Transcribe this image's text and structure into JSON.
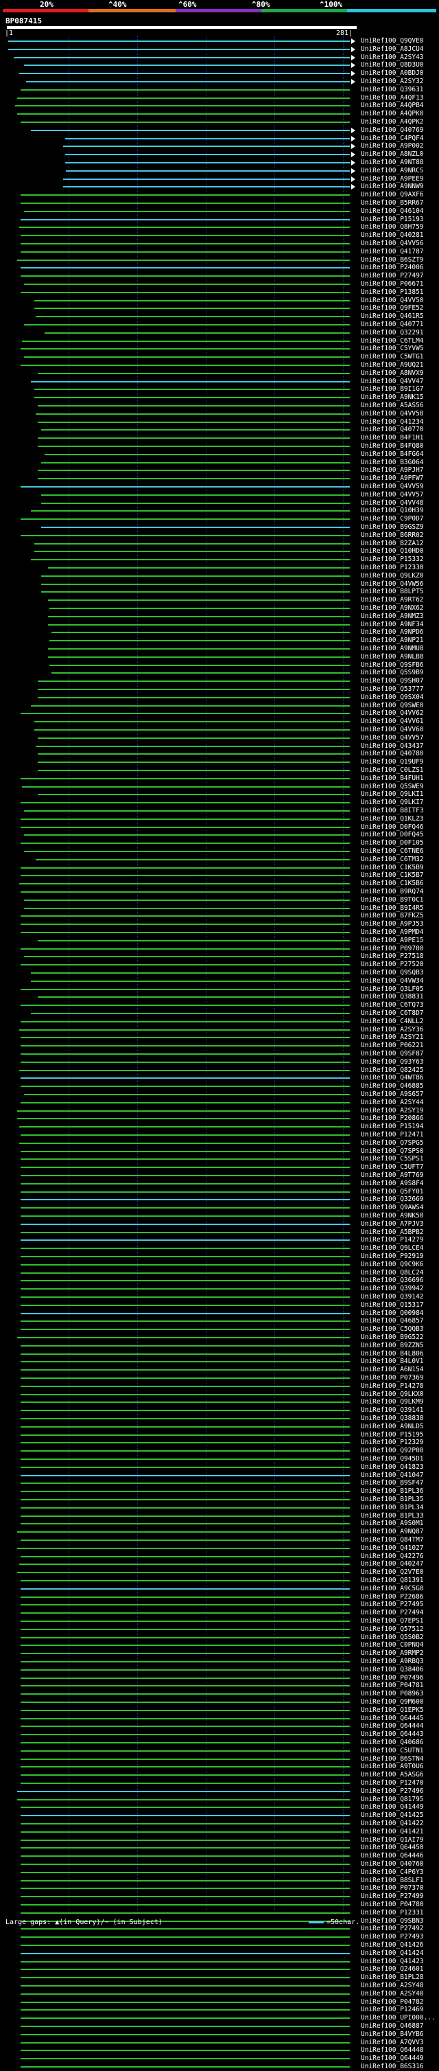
{
  "scale": {
    "labels": [
      "20%",
      "^40%",
      "^60%",
      "^80%",
      "^100%"
    ],
    "colors": [
      "#e01d1d",
      "#e06d1d",
      "#8a2fbf",
      "#1ea84a",
      "#29c3dc"
    ]
  },
  "query": {
    "title": "BP087415",
    "start_label": "|1",
    "end_label": "281|"
  },
  "colors": {
    "hit": "#2fbf2f",
    "hit_high": "#45c8e0",
    "gap": "#111"
  },
  "hits": [
    "UniRef100_Q9QVE0",
    "UniRef100_A8JCU4",
    "UniRef100_A2SY43",
    "UniRef100_Q8D3U0",
    "UniRef100_A0BDJ0",
    "UniRef100_A2SY32",
    "UniRef100_Q39631",
    "UniRef100_A4QF13",
    "UniRef100_A4QPB4",
    "UniRef100_A4QPK0",
    "UniRef100_A4QPK2",
    "UniRef100_Q40769",
    "UniRef100_C4PQF4",
    "UniRef100_A9P002",
    "UniRef100_A8NZL0",
    "UniRef100_A9NT88",
    "UniRef100_A9NRCS",
    "UniRef100_A9PEE9",
    "UniRef100_A9NNW9",
    "UniRef100_Q9AXF6",
    "UniRef100_B5RR67",
    "UniRef100_Q46104",
    "UniRef100_P15193",
    "UniRef100_Q8H759",
    "UniRef100_Q40281",
    "UniRef100_Q4VV56",
    "UniRef100_Q41787",
    "UniRef100_B6SZT9",
    "UniRef100_P24006",
    "UniRef100_P27497",
    "UniRef100_P06671",
    "UniRef100_P13851",
    "UniRef100_Q4VV50",
    "UniRef100_Q9FE52",
    "UniRef100_Q461R5",
    "UniRef100_Q40771",
    "UniRef100_Q32291",
    "UniRef100_C6TLM4",
    "UniRef100_C5YVW5",
    "UniRef100_C5WTG1",
    "UniRef100_A9UQ21",
    "UniRef100_A8NVX9",
    "UniRef100_Q4VV47",
    "UniRef100_B9I1G7",
    "UniRef100_A9NK15",
    "UniRef100_A5AS56",
    "UniRef100_Q4VV58",
    "UniRef100_Q41234",
    "UniRef100_Q40770",
    "UniRef100_B4F1H1",
    "UniRef100_B4FQ80",
    "UniRef100_B4FG64",
    "UniRef100_B3G064",
    "UniRef100_A9PJH7",
    "UniRef100_A9PFW7",
    "UniRef100_Q4VV59",
    "UniRef100_Q4VV57",
    "UniRef100_Q4VV48",
    "UniRef100_Q10H39",
    "UniRef100_C9P0D7",
    "UniRef100_B9GSZ9",
    "UniRef100_B6RR02",
    "UniRef100_B2ZA12",
    "UniRef100_Q10HD0",
    "UniRef100_P15332",
    "UniRef100_P12330",
    "UniRef100_Q9LKZ0",
    "UniRef100_Q4VW56",
    "UniRef100_B8LPT5",
    "UniRef100_A9RT62",
    "UniRef100_A9NX62",
    "UniRef100_A9NMZ3",
    "UniRef100_A9NF34",
    "UniRef100_A9NPD6",
    "UniRef100_A9NP21",
    "UniRef100_A9NMU8",
    "UniRef100_A9NLB8",
    "UniRef100_Q9SFB6",
    "UniRef100_Q5S9B9",
    "UniRef100_Q9SH07",
    "UniRef100_Q53777",
    "UniRef100_Q9SX04",
    "UniRef100_Q9SWE0",
    "UniRef100_Q4VV62",
    "UniRef100_Q4VV61",
    "UniRef100_Q4VV60",
    "UniRef100_Q4VV57",
    "UniRef100_Q43437",
    "UniRef100_Q40780",
    "UniRef100_Q19UF9",
    "UniRef100_C0LZS1",
    "UniRef100_B4FUH1",
    "UniRef100_Q5SWE9",
    "UniRef100_Q9LKI1",
    "UniRef100_Q9LKI7",
    "UniRef100_B8ITF3",
    "UniRef100_Q1KLZ3",
    "UniRef100_D0FQ46",
    "UniRef100_D0FQ45",
    "UniRef100_D0F105",
    "UniRef100_C6TNE6",
    "UniRef100_C6TM32",
    "UniRef100_C1K5B9",
    "UniRef100_C1K5B7",
    "UniRef100_C1K5B6",
    "UniRef100_B9RQ74",
    "UniRef100_B9T0C1",
    "UniRef100_B9I4R5",
    "UniRef100_B7FKZ5",
    "UniRef100_A9PJ53",
    "UniRef100_A9PMD4",
    "UniRef100_A9PE15",
    "UniRef100_P09700",
    "UniRef100_P27518",
    "UniRef100_P27520",
    "UniRef100_Q9SQB3",
    "UniRef100_Q4VW34",
    "UniRef100_Q3LF05",
    "UniRef100_Q38831",
    "UniRef100_C6TQ73",
    "UniRef100_C6T8D7",
    "UniRef100_C4NLL2",
    "UniRef100_A2SY36",
    "UniRef100_A2SY21",
    "UniRef100_P06221",
    "UniRef100_Q9SF87",
    "UniRef100_Q93Y63",
    "UniRef100_Q82425",
    "UniRef100_Q4WT86",
    "UniRef100_Q46885",
    "UniRef100_A9S657",
    "UniRef100_A2SY44",
    "UniRef100_A2SY19",
    "UniRef100_P20866",
    "UniRef100_P15194",
    "UniRef100_P12471",
    "UniRef100_Q7SPG5",
    "UniRef100_Q7SPS0",
    "UniRef100_C5SPS1",
    "UniRef100_C5UFT7",
    "UniRef100_A9T769",
    "UniRef100_A9S8F4",
    "UniRef100_Q5FY01",
    "UniRef100_Q32669",
    "UniRef100_Q9AWS4",
    "UniRef100_A9NK50",
    "UniRef100_A7PJV3",
    "UniRef100_A5BPB2",
    "UniRef100_P14279",
    "UniRef100_Q9LCE4",
    "UniRef100_P92919",
    "UniRef100_Q9C9K6",
    "UniRef100_Q8LC24",
    "UniRef100_Q36696",
    "UniRef100_Q39942",
    "UniRef100_Q39142",
    "UniRef100_Q15317",
    "UniRef100_Q00984",
    "UniRef100_Q46857",
    "UniRef100_C5QQB3",
    "UniRef100_B9G522",
    "UniRef100_B9ZZN5",
    "UniRef100_B4L806",
    "UniRef100_B4L0V1",
    "UniRef100_A6N154",
    "UniRef100_P07369",
    "UniRef100_P14278",
    "UniRef100_Q9LKX0",
    "UniRef100_Q9LKM9",
    "UniRef100_Q39141",
    "UniRef100_Q38838",
    "UniRef100_A9NLD5",
    "UniRef100_P15195",
    "UniRef100_P12329",
    "UniRef100_Q92P08",
    "UniRef100_Q945D1",
    "UniRef100_Q41823",
    "UniRef100_Q41047",
    "UniRef100_B9SF47",
    "UniRef100_B1PL36",
    "UniRef100_B1PL35",
    "UniRef100_B1PL34",
    "UniRef100_B1PL33",
    "UniRef100_A9S0M1",
    "UniRef100_A9NQ87",
    "UniRef100_Q84TM7",
    "UniRef100_Q41027",
    "UniRef100_Q42276",
    "UniRef100_Q40247",
    "UniRef100_Q2V7E0",
    "UniRef100_Q81391",
    "UniRef100_A9C5G0",
    "UniRef100_P22686",
    "UniRef100_P27495",
    "UniRef100_P27494",
    "UniRef100_Q7EPS1",
    "UniRef100_Q57512",
    "UniRef100_Q5S0B2",
    "UniRef100_C0PNQ4",
    "UniRef100_A9RMP2",
    "UniRef100_A9RBQ3",
    "UniRef100_Q38406",
    "UniRef100_P07496",
    "UniRef100_P04781",
    "UniRef100_P08963",
    "UniRef100_Q9M600",
    "UniRef100_Q1EPK5",
    "UniRef100_Q64445",
    "UniRef100_Q64444",
    "UniRef100_Q64443",
    "UniRef100_Q40686",
    "UniRef100_C5UTN1",
    "UniRef100_B6STN4",
    "UniRef100_A9T0U6",
    "UniRef100_A5ASG6",
    "UniRef100_P12470",
    "UniRef100_P27496",
    "UniRef100_Q81795",
    "UniRef100_Q41449",
    "UniRef100_Q41425",
    "UniRef100_Q41422",
    "UniRef100_Q41421",
    "UniRef100_Q1AI79",
    "UniRef100_Q64450",
    "UniRef100_Q64446",
    "UniRef100_Q40760",
    "UniRef100_C4P6Y3",
    "UniRef100_B8SLF1",
    "UniRef100_P07370",
    "UniRef100_P27499",
    "UniRef100_P04780",
    "UniRef100_P12331",
    "UniRef100_Q9SBN3",
    "UniRef100_P27492",
    "UniRef100_P27493",
    "UniRef100_Q41426",
    "UniRef100_Q41424",
    "UniRef100_Q41423",
    "UniRef100_Q24601",
    "UniRef100_B1PL28",
    "UniRef100_A2SY48",
    "UniRef100_A2SY40",
    "UniRef100_P04782",
    "UniRef100_P12469",
    "UniRef100_UPI000...",
    "UniRef100_Q46887",
    "UniRef100_B4VYB6",
    "UniRef100_A7QVV3",
    "UniRef100_Q64448",
    "UniRef100_Q64449",
    "UniRef100_B6S316"
  ],
  "footer": {
    "large_gaps": "Large gaps: ▲(in Query)/~ (in Subject)",
    "legend": "=50char."
  }
}
